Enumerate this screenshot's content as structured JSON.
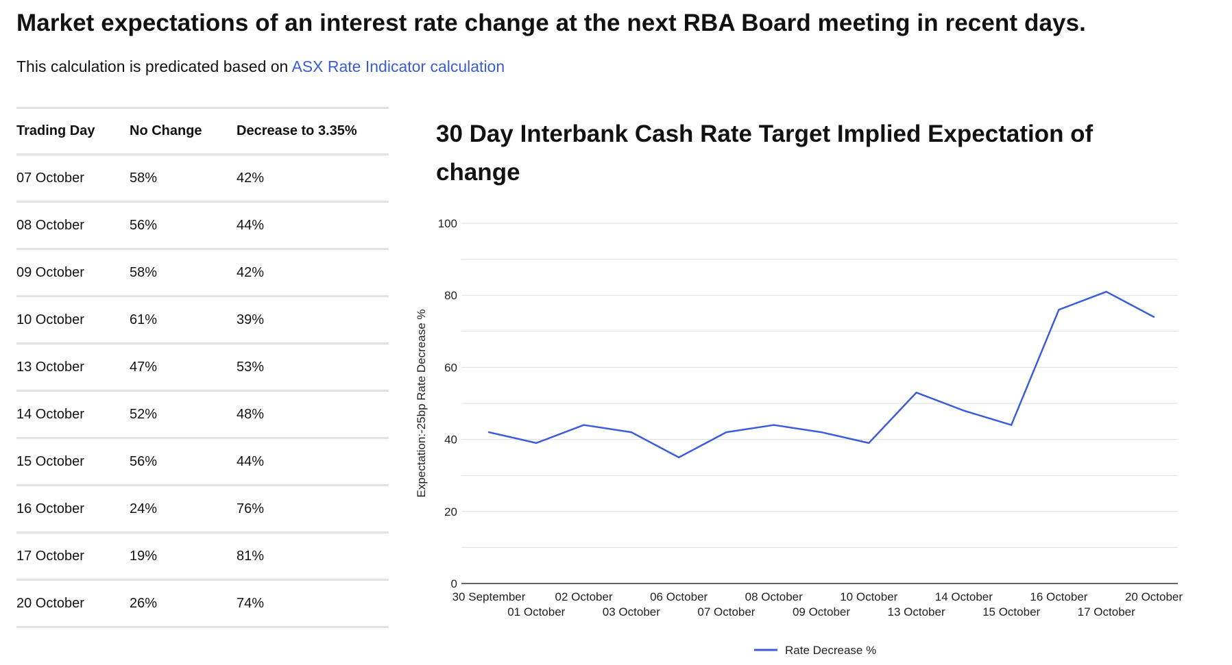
{
  "page": {
    "title": "Market expectations of an interest rate change at the next RBA Board meeting in recent days.",
    "subtitle_prefix": "This calculation is predicated based on ",
    "subtitle_link": "ASX Rate Indicator calculation"
  },
  "table": {
    "headers": [
      "Trading Day",
      "No Change",
      "Decrease to 3.35%"
    ],
    "rows": [
      [
        "07 October",
        "58%",
        "42%"
      ],
      [
        "08 October",
        "56%",
        "44%"
      ],
      [
        "09 October",
        "58%",
        "42%"
      ],
      [
        "10 October",
        "61%",
        "39%"
      ],
      [
        "13 October",
        "47%",
        "53%"
      ],
      [
        "14 October",
        "52%",
        "48%"
      ],
      [
        "15 October",
        "56%",
        "44%"
      ],
      [
        "16 October",
        "24%",
        "76%"
      ],
      [
        "17 October",
        "19%",
        "81%"
      ],
      [
        "20 October",
        "26%",
        "74%"
      ]
    ]
  },
  "colors": {
    "line": "#3b5bdb",
    "link": "#3b5bdb",
    "grid": "#dddddd",
    "axis": "#333333"
  },
  "chart_data": {
    "type": "line",
    "title": "30 Day Interbank Cash Rate Target Implied Expectation of change",
    "xlabel": "",
    "ylabel": "Expectation:-25bp Rate Decrease %",
    "ylim": [
      0,
      100
    ],
    "yticks": [
      0,
      20,
      40,
      60,
      80,
      100
    ],
    "categories": [
      "30 September",
      "01 October",
      "02 October",
      "03 October",
      "06 October",
      "07 October",
      "08 October",
      "09 October",
      "10 October",
      "13 October",
      "14 October",
      "15 October",
      "16 October",
      "17 October",
      "20 October"
    ],
    "series": [
      {
        "name": "Rate Decrease %",
        "values": [
          42,
          39,
          44,
          42,
          35,
          42,
          44,
          42,
          39,
          53,
          48,
          44,
          76,
          81,
          74
        ]
      }
    ],
    "legend": "bottom-center",
    "grid": true
  }
}
